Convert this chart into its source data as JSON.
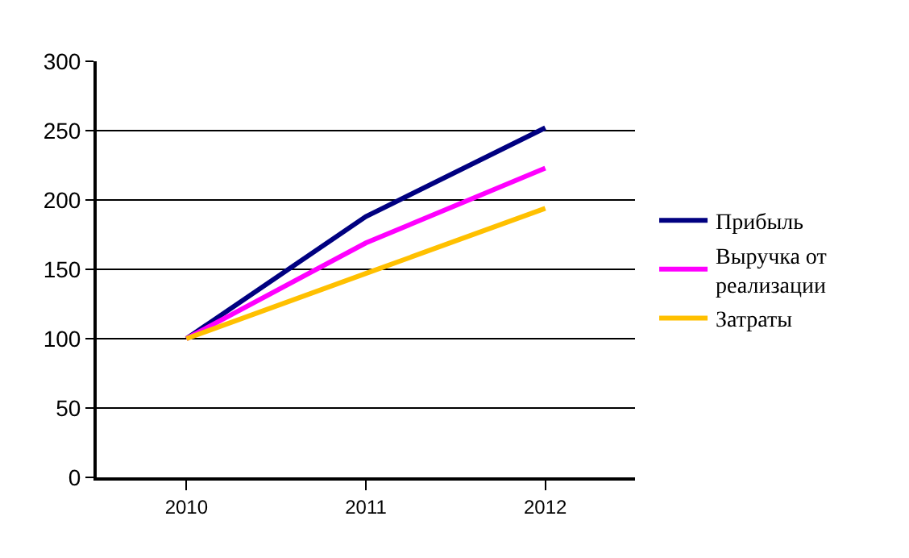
{
  "chart_data": {
    "type": "line",
    "categories": [
      "2010",
      "2011",
      "2012"
    ],
    "series": [
      {
        "name": "Прибыль",
        "color": "#000080",
        "values": [
          100,
          188,
          252
        ]
      },
      {
        "name": "Выручка от\nреализации",
        "color": "#ff00ff",
        "values": [
          100,
          169,
          223
        ]
      },
      {
        "name": "Затраты",
        "color": "#ffc000",
        "values": [
          100,
          147,
          194
        ]
      }
    ],
    "ylim": [
      0,
      300
    ],
    "yticks": [
      0,
      50,
      100,
      150,
      200,
      250,
      300
    ],
    "grid": "y",
    "legend": "right",
    "marker": "none",
    "line_style": "solid"
  }
}
